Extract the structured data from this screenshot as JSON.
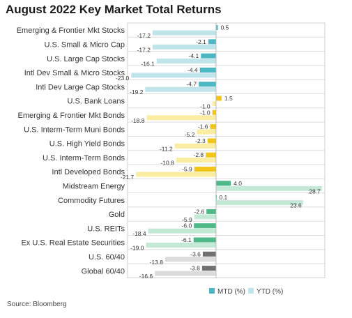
{
  "title": "August 2022 Key Market Total Returns",
  "source": "Source: Bloomberg",
  "chart_data": {
    "type": "bar",
    "orientation": "horizontal",
    "title": "August 2022 Key Market Total Returns",
    "categories": [
      "Emerging & Frontier Mkt Stocks",
      "U.S. Small & Micro Cap",
      "U.S. Large Cap Stocks",
      "Intl Dev Small & Micro Stocks",
      "Intl Dev Large Cap Stocks",
      "U.S. Bank Loans",
      "Emerging & Frontier Mkt Bonds",
      "U.S. Interm-Term Muni Bonds",
      "U.S. High Yield Bonds",
      "U.S. Interm-Term Bonds",
      "Intl Developed Bonds",
      "Midstream Energy",
      "Commodity Futures",
      "Gold",
      "U.S. REITs",
      "Ex U.S. Real Estate Securities",
      "U.S. 60/40",
      "Global 60/40"
    ],
    "groups": [
      "equity",
      "equity",
      "equity",
      "equity",
      "equity",
      "fixed",
      "fixed",
      "fixed",
      "fixed",
      "fixed",
      "fixed",
      "real",
      "real",
      "real",
      "real",
      "real",
      "balanced",
      "balanced"
    ],
    "series": [
      {
        "name": "MTD (%)",
        "values": [
          0.5,
          -2.1,
          -4.1,
          -4.4,
          -4.7,
          1.5,
          -1.0,
          -1.6,
          -2.3,
          -2.8,
          -5.9,
          4.0,
          0.1,
          -2.6,
          -6.0,
          -6.1,
          -3.6,
          -3.8
        ]
      },
      {
        "name": "YTD (%)",
        "values": [
          -17.2,
          -17.2,
          -16.1,
          -23.0,
          -19.2,
          -1.0,
          -18.8,
          -5.2,
          -11.2,
          -10.8,
          -21.7,
          28.7,
          23.6,
          -5.9,
          -18.4,
          -19.0,
          -13.8,
          -16.6
        ]
      }
    ],
    "value_labels": {
      "mtd": [
        "0.5",
        "-2.1",
        "-4.1",
        "-4.4",
        "-4.7",
        "1.5",
        "-1.0",
        "-1.6",
        "-2.3",
        "-2.8",
        "-5.9",
        "4.0",
        "0.1",
        "-2.6",
        "-6.0",
        "-6.1",
        "-3.6",
        "-3.8"
      ],
      "ytd": [
        "-17.2",
        "-17.2",
        "-16.1",
        "-23.0",
        "-19.2",
        "-1.0",
        "-18.8",
        "-5.2",
        "-11.2",
        "-10.8",
        "-21.7",
        "28.7",
        "23.6",
        "-5.9",
        "-18.4",
        "-19.0",
        "-13.8",
        "-16.6"
      ]
    },
    "xlim": [
      -24,
      29.5
    ],
    "grid": "horizontal row dividers",
    "legend_placement": "bottom-right",
    "colors": {
      "equity": {
        "mtd": "#4db8c4",
        "ytd": "#bfe5ea"
      },
      "fixed": {
        "mtd": "#f2c618",
        "ytd": "#faeca0"
      },
      "real": {
        "mtd": "#4fb889",
        "ytd": "#c4e8d6"
      },
      "balanced": {
        "mtd": "#707070",
        "ytd": "#dcdcdc"
      },
      "legend": {
        "mtd": "#4db8c4",
        "ytd": "#bfe5ea"
      }
    }
  }
}
